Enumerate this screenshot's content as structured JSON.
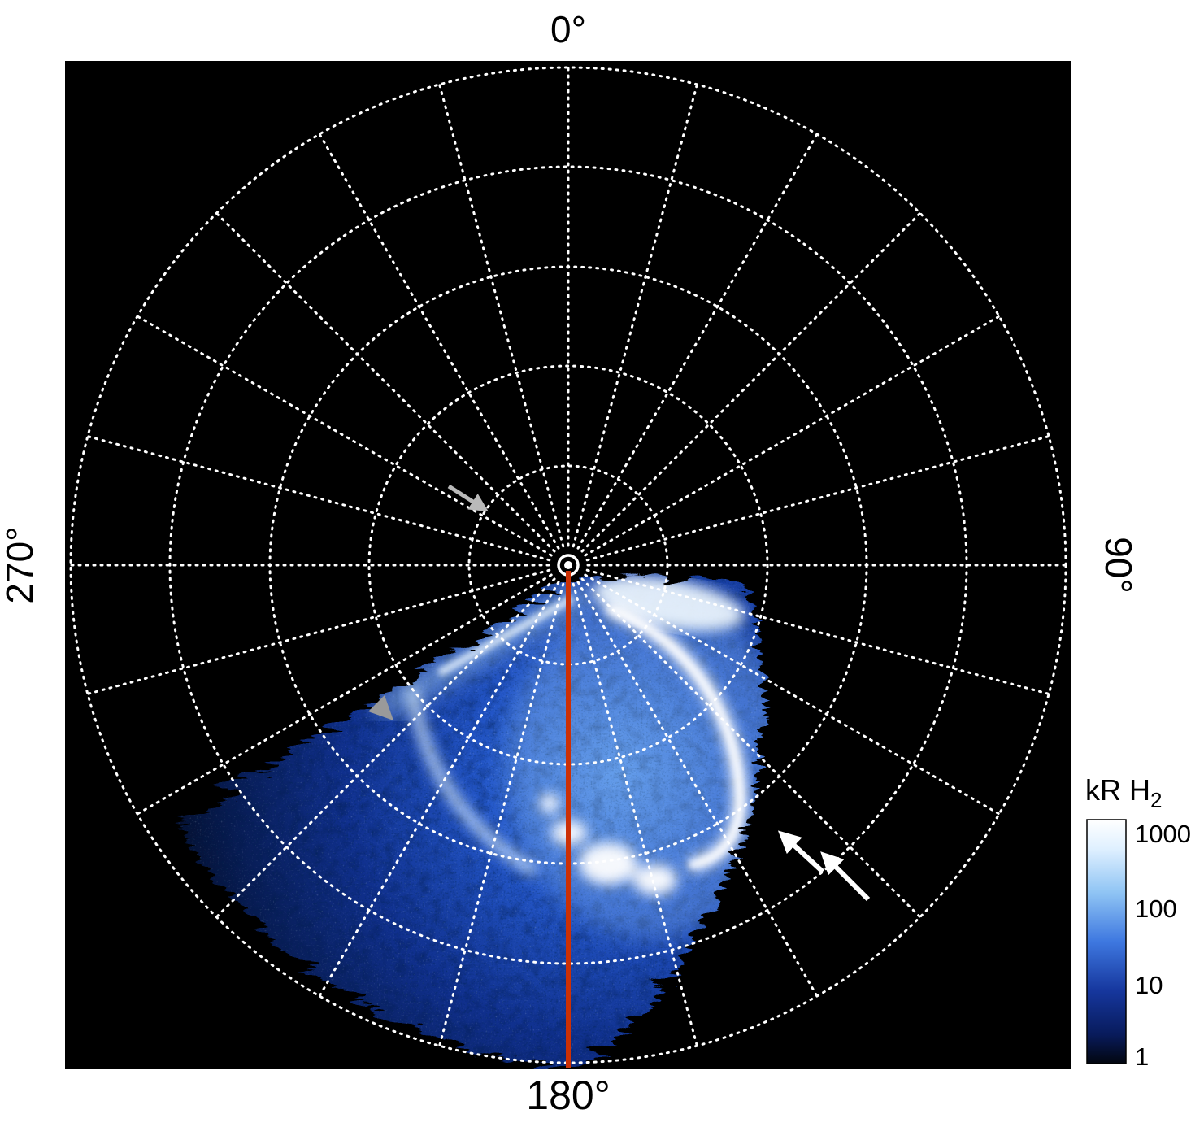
{
  "figure": {
    "angle_labels": {
      "top": "0°",
      "right": "90°",
      "bottom": "180°",
      "left": "270°"
    },
    "colorbar": {
      "title_main": "kR H",
      "title_sub": "2",
      "ticks": [
        "1000",
        "100",
        "10",
        "1"
      ],
      "scale": "log",
      "colors_top_to_bottom": [
        "#ffffff",
        "#dff0ff",
        "#8fc4f4",
        "#3e78e0",
        "#16379e",
        "#081b5c",
        "#02060f"
      ]
    },
    "grid": {
      "style": "dotted",
      "color": "#ffffff",
      "ring_count": 5,
      "spoke_step_deg": 15
    },
    "meridian_line": {
      "angle_deg": 180,
      "color": "#cc3005"
    }
  },
  "chart_data": {
    "type": "heatmap",
    "projection": "polar",
    "title": "",
    "angle_tick_labels": [
      "0°",
      "90°",
      "180°",
      "270°"
    ],
    "radial_gridline_step_deg": 15,
    "ring_count": 5,
    "colorbar": {
      "label": "kR H2",
      "scale": "log",
      "range": [
        1,
        1000
      ],
      "ticks": [
        1000,
        100,
        10,
        1
      ],
      "units": "kR"
    },
    "annotations": {
      "meridian_line": {
        "angle_deg": 180,
        "color": "#cc3005"
      },
      "arrows": [
        {
          "color": "gray",
          "points": "southeast",
          "location": "inner grid, upper-left of pole"
        },
        {
          "color": "gray",
          "points": "southeast",
          "location": "bright arc at left edge of aurora"
        },
        {
          "color": "white",
          "points": "northwest",
          "location": "lower right, just outside auroral limb"
        },
        {
          "color": "white",
          "points": "northwest",
          "location": "lower right, outside auroral limb (outer)"
        }
      ]
    },
    "content": "Polar-projection map of H2 auroral emission. Diffuse blue emission (log color scale, 1-1000 kR) fills the sector between roughly 95° and 250°; bright white auroral arcs occur between about 140° and 180° at mid radii, with a bright limb arc on the right side of the emission region. The remainder of the polar map is black. A red line marks the 180° meridian from the pole to the outer boundary."
  }
}
